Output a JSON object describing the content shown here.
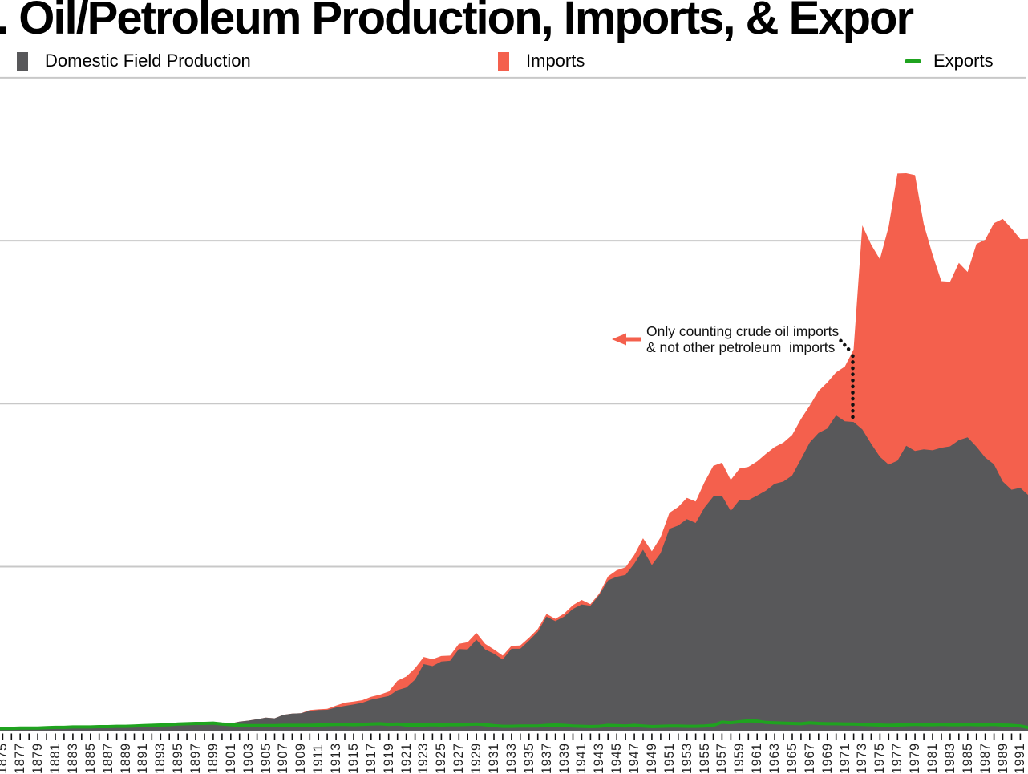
{
  "header": {
    "title_visible": ". Oil/Petroleum Production, Imports, & Expor"
  },
  "legend": [
    {
      "label": "Domestic Field Production",
      "swatch": "square",
      "color": "#58585a"
    },
    {
      "label": "Imports",
      "swatch": "square",
      "color": "#f4604d"
    },
    {
      "label": "Exports",
      "swatch": "line",
      "color": "#1fa31f"
    }
  ],
  "annotation": {
    "line1": "Only counting crude oil imports",
    "line2": "& not other petroleum  imports",
    "arrow_color": "#f4604d",
    "anchor_year": 1972
  },
  "chart_data": {
    "type": "area",
    "title": "",
    "xlabel": "",
    "ylabel": "",
    "unit_note": "y-axis labels cropped out of view; horizontal gridlines every 5 units (million barrels per day), ylim 0-20; x ticks yearly, labels every odd year, rotated 90deg",
    "legend_position": "top",
    "x_range_visible": [
      1875,
      1992
    ],
    "ylim": [
      0,
      20
    ],
    "gridline_values": [
      5,
      10,
      15,
      20
    ],
    "years": [
      1874,
      1875,
      1876,
      1877,
      1878,
      1879,
      1880,
      1881,
      1882,
      1883,
      1884,
      1885,
      1886,
      1887,
      1888,
      1889,
      1890,
      1891,
      1892,
      1893,
      1894,
      1895,
      1896,
      1897,
      1898,
      1899,
      1900,
      1901,
      1902,
      1903,
      1904,
      1905,
      1906,
      1907,
      1908,
      1909,
      1910,
      1911,
      1912,
      1913,
      1914,
      1915,
      1916,
      1917,
      1918,
      1919,
      1920,
      1921,
      1922,
      1923,
      1924,
      1925,
      1926,
      1927,
      1928,
      1929,
      1930,
      1931,
      1932,
      1933,
      1934,
      1935,
      1936,
      1937,
      1938,
      1939,
      1940,
      1941,
      1942,
      1943,
      1944,
      1945,
      1946,
      1947,
      1948,
      1949,
      1950,
      1951,
      1952,
      1953,
      1954,
      1955,
      1956,
      1957,
      1958,
      1959,
      1960,
      1961,
      1962,
      1963,
      1964,
      1965,
      1966,
      1967,
      1968,
      1969,
      1970,
      1971,
      1972,
      1973,
      1974,
      1975,
      1976,
      1977,
      1978,
      1979,
      1980,
      1981,
      1982,
      1983,
      1984,
      1985,
      1986,
      1987,
      1988,
      1989,
      1990,
      1991,
      1992
    ],
    "series": [
      {
        "name": "Domestic Field Production",
        "type": "area",
        "color": "#58585a",
        "values": [
          0.03,
          0.033,
          0.025,
          0.037,
          0.042,
          0.054,
          0.072,
          0.076,
          0.083,
          0.064,
          0.066,
          0.06,
          0.077,
          0.078,
          0.076,
          0.096,
          0.125,
          0.149,
          0.138,
          0.133,
          0.135,
          0.145,
          0.167,
          0.166,
          0.152,
          0.157,
          0.174,
          0.19,
          0.243,
          0.275,
          0.32,
          0.369,
          0.347,
          0.455,
          0.49,
          0.501,
          0.574,
          0.603,
          0.609,
          0.678,
          0.728,
          0.77,
          0.822,
          0.919,
          0.974,
          1.03,
          1.21,
          1.29,
          1.53,
          2.01,
          1.95,
          2.09,
          2.11,
          2.47,
          2.46,
          2.76,
          2.46,
          2.33,
          2.15,
          2.48,
          2.48,
          2.73,
          3.0,
          3.47,
          3.33,
          3.47,
          3.7,
          3.84,
          3.8,
          4.13,
          4.58,
          4.69,
          4.75,
          5.09,
          5.52,
          5.05,
          5.41,
          6.16,
          6.26,
          6.46,
          6.34,
          6.81,
          7.15,
          7.17,
          6.71,
          7.05,
          7.04,
          7.18,
          7.33,
          7.54,
          7.61,
          7.8,
          8.3,
          8.81,
          9.1,
          9.24,
          9.64,
          9.46,
          9.44,
          9.21,
          8.77,
          8.37,
          8.13,
          8.25,
          8.71,
          8.55,
          8.6,
          8.57,
          8.65,
          8.69,
          8.88,
          8.97,
          8.68,
          8.35,
          8.14,
          7.61,
          7.36,
          7.42,
          7.17
        ]
      },
      {
        "name": "Imports",
        "type": "area-stacked-on-production",
        "color": "#f4604d",
        "values": [
          0,
          0,
          0,
          0,
          0,
          0,
          0,
          0,
          0,
          0,
          0,
          0,
          0,
          0,
          0,
          0,
          0,
          0,
          0,
          0,
          0,
          0,
          0,
          0,
          0,
          0,
          0,
          0,
          0,
          0,
          0,
          0,
          0,
          0,
          0,
          0,
          0.03,
          0.02,
          0.03,
          0.06,
          0.1,
          0.09,
          0.08,
          0.09,
          0.1,
          0.14,
          0.29,
          0.34,
          0.35,
          0.22,
          0.21,
          0.17,
          0.16,
          0.16,
          0.22,
          0.21,
          0.17,
          0.13,
          0.12,
          0.09,
          0.1,
          0.09,
          0.09,
          0.08,
          0.07,
          0.09,
          0.12,
          0.14,
          0.05,
          0.04,
          0.12,
          0.2,
          0.23,
          0.27,
          0.35,
          0.42,
          0.49,
          0.49,
          0.57,
          0.65,
          0.66,
          0.78,
          0.94,
          1.02,
          0.95,
          0.96,
          1.02,
          1.05,
          1.13,
          1.13,
          1.2,
          1.24,
          1.23,
          1.13,
          1.29,
          1.41,
          1.32,
          1.68,
          2.22,
          6.26,
          6.11,
          6.06,
          7.31,
          8.81,
          8.36,
          8.46,
          6.91,
          6.0,
          5.11,
          5.05,
          5.44,
          5.07,
          6.22,
          6.68,
          7.4,
          8.06,
          8.02,
          7.63,
          7.89
        ]
      },
      {
        "name": "Exports",
        "type": "line",
        "color": "#1fa31f",
        "values": [
          0.03,
          0.04,
          0.04,
          0.05,
          0.05,
          0.05,
          0.06,
          0.07,
          0.07,
          0.08,
          0.08,
          0.08,
          0.09,
          0.09,
          0.1,
          0.1,
          0.11,
          0.12,
          0.13,
          0.14,
          0.15,
          0.17,
          0.18,
          0.19,
          0.19,
          0.2,
          0.17,
          0.15,
          0.13,
          0.12,
          0.12,
          0.12,
          0.12,
          0.13,
          0.13,
          0.13,
          0.13,
          0.14,
          0.15,
          0.16,
          0.16,
          0.15,
          0.16,
          0.17,
          0.18,
          0.16,
          0.17,
          0.14,
          0.14,
          0.14,
          0.15,
          0.14,
          0.15,
          0.15,
          0.16,
          0.17,
          0.15,
          0.12,
          0.1,
          0.1,
          0.11,
          0.11,
          0.11,
          0.13,
          0.14,
          0.13,
          0.11,
          0.1,
          0.09,
          0.1,
          0.13,
          0.12,
          0.11,
          0.13,
          0.11,
          0.09,
          0.1,
          0.11,
          0.11,
          0.1,
          0.1,
          0.11,
          0.13,
          0.23,
          0.21,
          0.24,
          0.27,
          0.26,
          0.22,
          0.21,
          0.2,
          0.19,
          0.18,
          0.21,
          0.19,
          0.18,
          0.18,
          0.17,
          0.17,
          0.16,
          0.15,
          0.14,
          0.13,
          0.14,
          0.15,
          0.16,
          0.15,
          0.15,
          0.16,
          0.15,
          0.15,
          0.16,
          0.15,
          0.15,
          0.16,
          0.14,
          0.13,
          0.11,
          0.06
        ]
      }
    ],
    "x_label_years": [
      1875,
      1877,
      1879,
      1881,
      1883,
      1885,
      1887,
      1889,
      1891,
      1893,
      1895,
      1897,
      1899,
      1901,
      1903,
      1905,
      1907,
      1909,
      1911,
      1913,
      1915,
      1917,
      1919,
      1921,
      1923,
      1925,
      1927,
      1929,
      1931,
      1933,
      1935,
      1937,
      1939,
      1941,
      1943,
      1945,
      1947,
      1949,
      1951,
      1953,
      1955,
      1957,
      1959,
      1961,
      1963,
      1965,
      1967,
      1969,
      1971,
      1973,
      1975,
      1977,
      1979,
      1981,
      1983,
      1985,
      1987,
      1989,
      1991
    ]
  },
  "colors": {
    "gridline": "#c8c8c8",
    "tick": "#111111",
    "x_label": "#222222",
    "annotation_dots": "#111111"
  }
}
